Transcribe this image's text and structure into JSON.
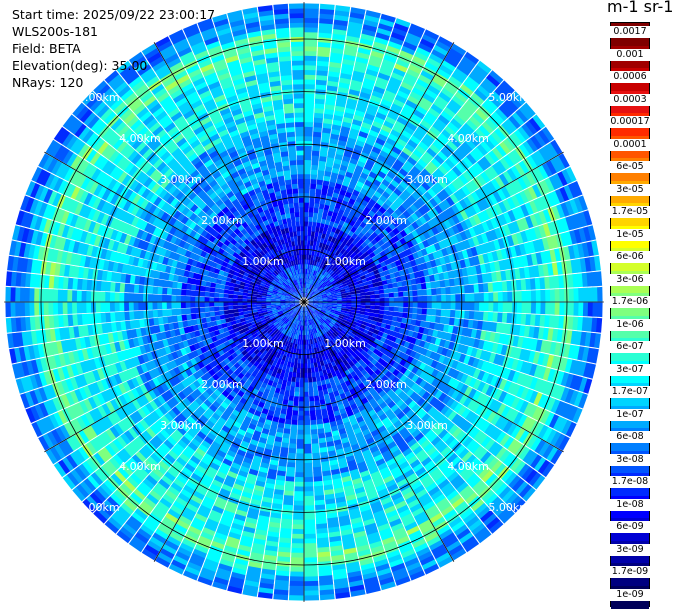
{
  "info": {
    "start_time": "Start time: 2025/09/22 23:00:17",
    "instrument": "WLS200s-181",
    "field": "Field: BETA",
    "elevation": "Elevation(deg): 35.00",
    "nrays": "NRays: 120"
  },
  "colorbar": {
    "title": "m-1 sr-1",
    "labels": [
      "0.0017",
      "0.001",
      "0.0006",
      "0.0003",
      "0.00017",
      "0.0001",
      "6e-05",
      "3e-05",
      "1.7e-05",
      "1e-05",
      "6e-06",
      "3e-06",
      "1.7e-06",
      "1e-06",
      "6e-07",
      "3e-07",
      "1.7e-07",
      "1e-07",
      "6e-08",
      "3e-08",
      "1.7e-08",
      "1e-08",
      "6e-09",
      "3e-09",
      "1.7e-09",
      "1e-09"
    ],
    "colors": [
      "#7f0000",
      "#a00000",
      "#c80000",
      "#e61010",
      "#ff2a00",
      "#ff5500",
      "#ff7f00",
      "#ffaa00",
      "#ffd400",
      "#ffff00",
      "#d4ff2a",
      "#aaff55",
      "#7fff7f",
      "#55ffaa",
      "#2affd4",
      "#00ffff",
      "#00d4ff",
      "#00aaff",
      "#007fff",
      "#0055ff",
      "#002aff",
      "#0000ff",
      "#0000d4",
      "#0000aa",
      "#00007f",
      "#00005a"
    ]
  },
  "range_rings": {
    "labels": [
      "1.00km",
      "2.00km",
      "3.00km",
      "4.00km",
      "5.00km"
    ]
  },
  "chart_data": {
    "type": "heatmap",
    "title": "",
    "projection": "polar PPI",
    "field": "BETA",
    "units": "m-1 sr-1",
    "elevation_deg": 35.0,
    "n_rays": 120,
    "range_rings_km": [
      1,
      2,
      3,
      4,
      5
    ],
    "max_range_km": 5.7,
    "color_scale": "log",
    "value_range": [
      1e-09,
      0.0017
    ],
    "grid": true,
    "description_levels": [
      {
        "range_km": [
          0.0,
          0.7
        ],
        "typical_value": 3e-08
      },
      {
        "range_km": [
          0.7,
          1.5
        ],
        "typical_value": 1e-08
      },
      {
        "range_km": [
          1.5,
          2.3
        ],
        "typical_value": 3e-08
      },
      {
        "range_km": [
          2.3,
          3.4
        ],
        "typical_value": 1e-07
      },
      {
        "range_km": [
          3.4,
          4.8
        ],
        "typical_value": 3e-07
      },
      {
        "range_km": [
          4.8,
          5.7
        ],
        "typical_value": 6e-08
      }
    ]
  }
}
